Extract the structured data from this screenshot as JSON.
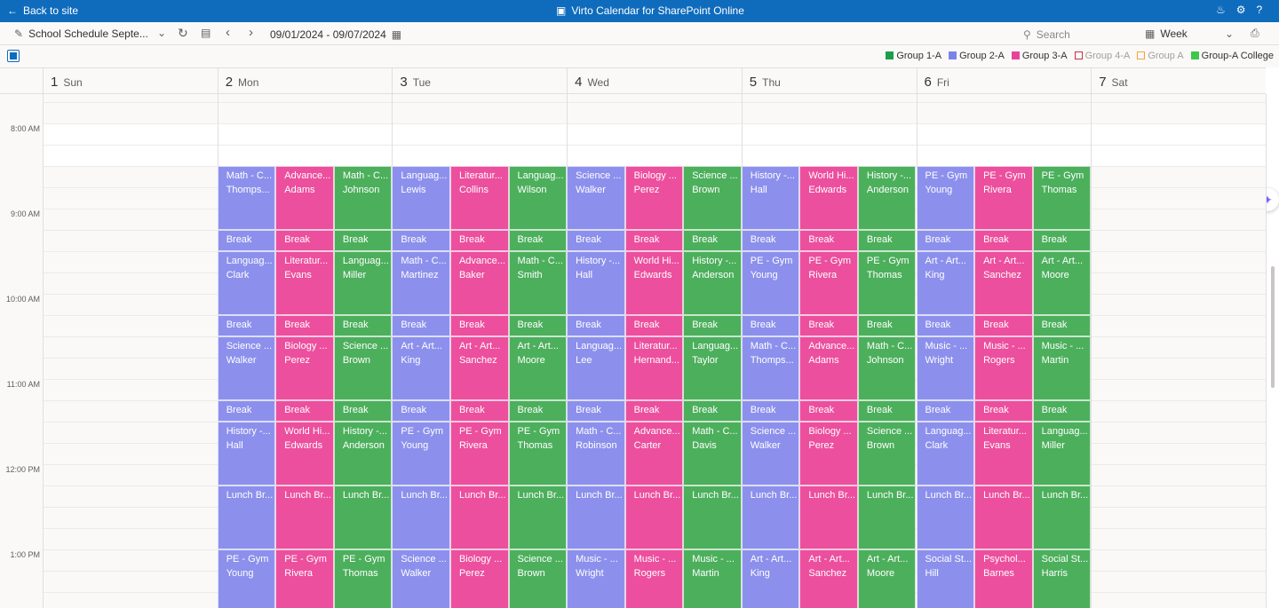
{
  "header": {
    "back": "Back to site",
    "title": "Virto Calendar for SharePoint Online"
  },
  "toolbar": {
    "calendar": "School Schedule Septe...",
    "range": "09/01/2024 - 09/07/2024",
    "search": "Search",
    "view": "Week"
  },
  "legend": [
    {
      "label": "Group 1-A",
      "color": "#1f9e4a",
      "style": "filled"
    },
    {
      "label": "Group 2-A",
      "color": "#7b83eb",
      "style": "filled"
    },
    {
      "label": "Group 3-A",
      "color": "#e8439a",
      "style": "filled"
    },
    {
      "label": "Group 4-A",
      "color": "#c4314b",
      "style": "outline"
    },
    {
      "label": "Group A",
      "color": "#f7a23c",
      "style": "outline"
    },
    {
      "label": "Group-A College",
      "color": "#3ec84a",
      "style": "filled"
    }
  ],
  "days": [
    {
      "num": 1,
      "name": "Sun"
    },
    {
      "num": 2,
      "name": "Mon"
    },
    {
      "num": 3,
      "name": "Tue"
    },
    {
      "num": 4,
      "name": "Wed"
    },
    {
      "num": 5,
      "name": "Thu"
    },
    {
      "num": 6,
      "name": "Fri"
    },
    {
      "num": 7,
      "name": "Sat"
    }
  ],
  "times": [
    "8:00 AM",
    "9:00 AM",
    "10:00 AM",
    "11:00 AM",
    "12:00 PM",
    "1:00 PM"
  ],
  "schedule": [
    [
      [
        "Math - C...",
        "Thomps..."
      ],
      [
        "Advance...",
        "Adams"
      ],
      [
        "Math - C...",
        "Johnson"
      ],
      [
        "Languag...",
        "Lewis"
      ],
      [
        "Literatur...",
        "Collins"
      ],
      [
        "Languag...",
        "Wilson"
      ],
      [
        "Science ...",
        "Walker"
      ],
      [
        "Biology ...",
        "Perez"
      ],
      [
        "Science ...",
        "Brown"
      ],
      [
        "History -...",
        "Hall"
      ],
      [
        "World Hi...",
        "Edwards"
      ],
      [
        "History -...",
        "Anderson"
      ],
      [
        "PE - Gym",
        "Young"
      ],
      [
        "PE - Gym",
        "Rivera"
      ],
      [
        "PE - Gym",
        "Thomas"
      ]
    ],
    [
      [
        "Break"
      ],
      [
        "Break"
      ],
      [
        "Break"
      ],
      [
        "Break"
      ],
      [
        "Break"
      ],
      [
        "Break"
      ],
      [
        "Break"
      ],
      [
        "Break"
      ],
      [
        "Break"
      ],
      [
        "Break"
      ],
      [
        "Break"
      ],
      [
        "Break"
      ],
      [
        "Break"
      ],
      [
        "Break"
      ],
      [
        "Break"
      ]
    ],
    [
      [
        "Languag...",
        "Clark"
      ],
      [
        "Literatur...",
        "Evans"
      ],
      [
        "Languag...",
        "Miller"
      ],
      [
        "Math - C...",
        "Martinez"
      ],
      [
        "Advance...",
        "Baker"
      ],
      [
        "Math - C...",
        "Smith"
      ],
      [
        "History -...",
        "Hall"
      ],
      [
        "World Hi...",
        "Edwards"
      ],
      [
        "History -...",
        "Anderson"
      ],
      [
        "PE - Gym",
        "Young"
      ],
      [
        "PE - Gym",
        "Rivera"
      ],
      [
        "PE - Gym",
        "Thomas"
      ],
      [
        "Art - Art...",
        "King"
      ],
      [
        "Art - Art...",
        "Sanchez"
      ],
      [
        "Art - Art...",
        "Moore"
      ]
    ],
    [
      [
        "Break"
      ],
      [
        "Break"
      ],
      [
        "Break"
      ],
      [
        "Break"
      ],
      [
        "Break"
      ],
      [
        "Break"
      ],
      [
        "Break"
      ],
      [
        "Break"
      ],
      [
        "Break"
      ],
      [
        "Break"
      ],
      [
        "Break"
      ],
      [
        "Break"
      ],
      [
        "Break"
      ],
      [
        "Break"
      ],
      [
        "Break"
      ]
    ],
    [
      [
        "Science ...",
        "Walker"
      ],
      [
        "Biology ...",
        "Perez"
      ],
      [
        "Science ...",
        "Brown"
      ],
      [
        "Art - Art...",
        "King"
      ],
      [
        "Art - Art...",
        "Sanchez"
      ],
      [
        "Art - Art...",
        "Moore"
      ],
      [
        "Languag...",
        "Lee"
      ],
      [
        "Literatur...",
        "Hernand..."
      ],
      [
        "Languag...",
        "Taylor"
      ],
      [
        "Math - C...",
        "Thomps..."
      ],
      [
        "Advance...",
        "Adams"
      ],
      [
        "Math - C...",
        "Johnson"
      ],
      [
        "Music - ...",
        "Wright"
      ],
      [
        "Music - ...",
        "Rogers"
      ],
      [
        "Music - ...",
        "Martin"
      ]
    ],
    [
      [
        "Break"
      ],
      [
        "Break"
      ],
      [
        "Break"
      ],
      [
        "Break"
      ],
      [
        "Break"
      ],
      [
        "Break"
      ],
      [
        "Break"
      ],
      [
        "Break"
      ],
      [
        "Break"
      ],
      [
        "Break"
      ],
      [
        "Break"
      ],
      [
        "Break"
      ],
      [
        "Break"
      ],
      [
        "Break"
      ],
      [
        "Break"
      ]
    ],
    [
      [
        "History -...",
        "Hall"
      ],
      [
        "World Hi...",
        "Edwards"
      ],
      [
        "History -...",
        "Anderson"
      ],
      [
        "PE - Gym",
        "Young"
      ],
      [
        "PE - Gym",
        "Rivera"
      ],
      [
        "PE - Gym",
        "Thomas"
      ],
      [
        "Math - C...",
        "Robinson"
      ],
      [
        "Advance...",
        "Carter"
      ],
      [
        "Math - C...",
        "Davis"
      ],
      [
        "Science ...",
        "Walker"
      ],
      [
        "Biology ...",
        "Perez"
      ],
      [
        "Science ...",
        "Brown"
      ],
      [
        "Languag...",
        "Clark"
      ],
      [
        "Literatur...",
        "Evans"
      ],
      [
        "Languag...",
        "Miller"
      ]
    ],
    [
      [
        "Lunch Br..."
      ],
      [
        "Lunch Br..."
      ],
      [
        "Lunch Br..."
      ],
      [
        "Lunch Br..."
      ],
      [
        "Lunch Br..."
      ],
      [
        "Lunch Br..."
      ],
      [
        "Lunch Br..."
      ],
      [
        "Lunch Br..."
      ],
      [
        "Lunch Br..."
      ],
      [
        "Lunch Br..."
      ],
      [
        "Lunch Br..."
      ],
      [
        "Lunch Br..."
      ],
      [
        "Lunch Br..."
      ],
      [
        "Lunch Br..."
      ],
      [
        "Lunch Br..."
      ]
    ],
    [
      [
        "PE - Gym",
        "Young"
      ],
      [
        "PE - Gym",
        "Rivera"
      ],
      [
        "PE - Gym",
        "Thomas"
      ],
      [
        "Science ...",
        "Walker"
      ],
      [
        "Biology ...",
        "Perez"
      ],
      [
        "Science ...",
        "Brown"
      ],
      [
        "Music - ...",
        "Wright"
      ],
      [
        "Music - ...",
        "Rogers"
      ],
      [
        "Music - ...",
        "Martin"
      ],
      [
        "Art - Art...",
        "King"
      ],
      [
        "Art - Art...",
        "Sanchez"
      ],
      [
        "Art - Art...",
        "Moore"
      ],
      [
        "Social St...",
        "Hill"
      ],
      [
        "Psychol...",
        "Barnes"
      ],
      [
        "Social St...",
        "Harris"
      ]
    ]
  ]
}
